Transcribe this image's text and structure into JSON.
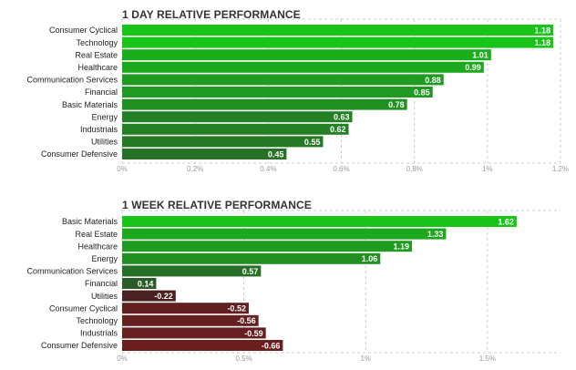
{
  "chart_data": [
    {
      "type": "bar",
      "orientation": "horizontal",
      "title": "1 DAY RELATIVE PERFORMANCE",
      "categories": [
        "Consumer Cyclical",
        "Technology",
        "Real Estate",
        "Healthcare",
        "Communication Services",
        "Financial",
        "Basic Materials",
        "Energy",
        "Industrials",
        "Utilities",
        "Consumer Defensive"
      ],
      "values": [
        1.18,
        1.18,
        1.01,
        0.99,
        0.88,
        0.85,
        0.78,
        0.63,
        0.62,
        0.55,
        0.45
      ],
      "value_labels": [
        "1.18",
        "1.18",
        "1.01",
        "0.99",
        "0.88",
        "0.85",
        "0.78",
        "0.63",
        "0.62",
        "0.55",
        "0.45"
      ],
      "xlim": [
        0,
        1.2
      ],
      "xticks": [
        0,
        0.2,
        0.4,
        0.6,
        0.8,
        1.0,
        1.2
      ],
      "xtick_labels": [
        "0%",
        "0.2%",
        "0.4%",
        "0.6%",
        "0.8%",
        "1%",
        "1.2%"
      ],
      "grid": "vertical dashed",
      "colors": {
        "positive_high": "#18c418",
        "positive_low": "#2a5a2a",
        "negative_high": "#3a2222",
        "negative_low": "#6b1e1e",
        "axis_text": "#9a9a9a",
        "grid": "#cccccc"
      }
    },
    {
      "type": "bar",
      "orientation": "horizontal",
      "title": "1 WEEK RELATIVE PERFORMANCE",
      "categories": [
        "Basic Materials",
        "Real Estate",
        "Healthcare",
        "Energy",
        "Communication Services",
        "Financial",
        "Utilities",
        "Consumer Cyclical",
        "Technology",
        "Industrials",
        "Consumer Defensive"
      ],
      "values": [
        1.62,
        1.33,
        1.19,
        1.06,
        0.57,
        0.14,
        -0.22,
        -0.52,
        -0.56,
        -0.59,
        -0.66
      ],
      "value_labels": [
        "1.62",
        "1.33",
        "1.19",
        "1.06",
        "0.57",
        "0.14",
        "-0.22",
        "-0.52",
        "-0.56",
        "-0.59",
        "-0.66"
      ],
      "xlim": [
        0,
        1.8
      ],
      "xticks": [
        0,
        0.5,
        1.0,
        1.5
      ],
      "xtick_labels": [
        "0%",
        "0.5%",
        "1%",
        "1.5%"
      ],
      "grid": "vertical dashed",
      "note_negative": "negative bars drawn with magnitude from axis",
      "colors": {
        "positive_high": "#18c418",
        "positive_low": "#2a5a2a",
        "negative_high": "#3a2222",
        "negative_low": "#6b1e1e",
        "axis_text": "#9a9a9a",
        "grid": "#cccccc"
      }
    }
  ]
}
